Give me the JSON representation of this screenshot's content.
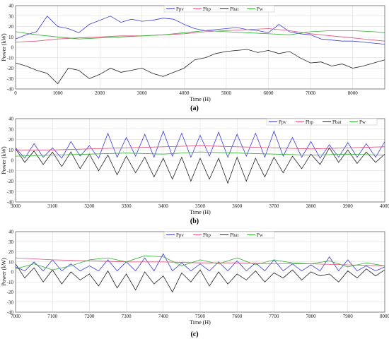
{
  "figure": {
    "panels": [
      {
        "caption": "(a)"
      },
      {
        "caption": "(b)"
      },
      {
        "caption": "(c)"
      }
    ]
  },
  "chart_data": [
    {
      "type": "line",
      "caption": "(a)",
      "xlabel": "Time (H)",
      "ylabel": "Power (kW)",
      "xlim": [
        0,
        8760
      ],
      "ylim": [
        -40,
        40
      ],
      "xticks": [
        0,
        1000,
        2000,
        3000,
        4000,
        5000,
        6000,
        7000,
        8000
      ],
      "yticks": [
        -40,
        -30,
        -20,
        -10,
        0,
        10,
        20,
        30,
        40
      ],
      "grid": true,
      "legend_position": "top-center",
      "series": [
        {
          "name": "Ppv",
          "color": "#3b3bdb",
          "x": [
            0,
            250,
            500,
            750,
            1000,
            1250,
            1500,
            1750,
            2000,
            2250,
            2500,
            2750,
            3000,
            3250,
            3500,
            3750,
            4000,
            4250,
            4500,
            4750,
            5000,
            5250,
            5500,
            5750,
            6000,
            6250,
            6500,
            6750,
            7000,
            7250,
            7500,
            7750,
            8000,
            8250,
            8500,
            8760
          ],
          "y": [
            8,
            12,
            15,
            30,
            20,
            18,
            14,
            22,
            26,
            30,
            24,
            27,
            25,
            26,
            28,
            27,
            22,
            18,
            16,
            17,
            18,
            19,
            17,
            16,
            14,
            22,
            15,
            13,
            12,
            8,
            7,
            6,
            6,
            5,
            4,
            3
          ]
        },
        {
          "name": "Php",
          "color": "#e0527a",
          "x": [
            0,
            500,
            1000,
            1500,
            2000,
            2500,
            3000,
            3500,
            4000,
            4500,
            5000,
            5500,
            6000,
            6500,
            7000,
            7500,
            8000,
            8500,
            8760
          ],
          "y": [
            5,
            6,
            8,
            9,
            10,
            11,
            11,
            12,
            13,
            15,
            16,
            17,
            18,
            16,
            13,
            11,
            9,
            7,
            6
          ]
        },
        {
          "name": "Pbat",
          "color": "#222222",
          "x": [
            0,
            250,
            500,
            750,
            1000,
            1250,
            1500,
            1750,
            2000,
            2250,
            2500,
            2750,
            3000,
            3250,
            3500,
            3750,
            4000,
            4250,
            4500,
            4750,
            5000,
            5250,
            5500,
            5750,
            6000,
            6250,
            6500,
            6750,
            7000,
            7250,
            7500,
            7750,
            8000,
            8250,
            8500,
            8760
          ],
          "y": [
            -15,
            -18,
            -22,
            -25,
            -35,
            -20,
            -22,
            -30,
            -26,
            -20,
            -24,
            -22,
            -20,
            -25,
            -28,
            -24,
            -20,
            -12,
            -10,
            -6,
            -4,
            -3,
            -2,
            -5,
            -3,
            -6,
            -4,
            -10,
            -15,
            -14,
            -18,
            -16,
            -20,
            -18,
            -15,
            -12
          ]
        },
        {
          "name": "Pw",
          "color": "#33b233",
          "x": [
            0,
            500,
            1000,
            1500,
            2000,
            2500,
            3000,
            3500,
            4000,
            4500,
            5000,
            5500,
            6000,
            6500,
            7000,
            7500,
            8000,
            8500,
            8760
          ],
          "y": [
            15,
            12,
            10,
            8,
            9,
            10,
            11,
            12,
            14,
            16,
            15,
            14,
            13,
            12,
            15,
            16,
            16,
            15,
            14
          ]
        }
      ]
    },
    {
      "type": "line",
      "caption": "(b)",
      "xlabel": "Time (H)",
      "ylabel": "Power (kW)",
      "xlim": [
        3000,
        4000
      ],
      "ylim": [
        -40,
        40
      ],
      "xticks": [
        3000,
        3100,
        3200,
        3300,
        3400,
        3500,
        3600,
        3700,
        3800,
        3900,
        4000
      ],
      "yticks": [
        -40,
        -30,
        -20,
        -10,
        0,
        10,
        20,
        30,
        40
      ],
      "grid": true,
      "legend_position": "top-right",
      "series": [
        {
          "name": "Ppv",
          "color": "#3b3bdb",
          "x": [
            3000,
            3025,
            3050,
            3075,
            3100,
            3125,
            3150,
            3175,
            3200,
            3225,
            3250,
            3275,
            3300,
            3325,
            3350,
            3375,
            3400,
            3425,
            3450,
            3475,
            3500,
            3525,
            3550,
            3575,
            3600,
            3625,
            3650,
            3675,
            3700,
            3725,
            3750,
            3775,
            3800,
            3825,
            3850,
            3875,
            3900,
            3925,
            3950,
            3975,
            4000
          ],
          "y": [
            12,
            2,
            16,
            3,
            12,
            2,
            18,
            4,
            14,
            2,
            26,
            3,
            22,
            4,
            25,
            3,
            28,
            4,
            26,
            3,
            24,
            4,
            27,
            3,
            25,
            4,
            26,
            3,
            28,
            4,
            22,
            3,
            18,
            2,
            15,
            3,
            17,
            3,
            16,
            3,
            18
          ]
        },
        {
          "name": "Php",
          "color": "#e0527a",
          "x": [
            3000,
            3100,
            3200,
            3300,
            3400,
            3500,
            3600,
            3700,
            3800,
            3900,
            4000
          ],
          "y": [
            10,
            10,
            11,
            12,
            13,
            14,
            13,
            12,
            11,
            12,
            13
          ]
        },
        {
          "name": "Pbat",
          "color": "#222222",
          "x": [
            3000,
            3025,
            3050,
            3075,
            3100,
            3125,
            3150,
            3175,
            3200,
            3225,
            3250,
            3275,
            3300,
            3325,
            3350,
            3375,
            3400,
            3425,
            3450,
            3475,
            3500,
            3525,
            3550,
            3575,
            3600,
            3625,
            3650,
            3675,
            3700,
            3725,
            3750,
            3775,
            3800,
            3825,
            3850,
            3875,
            3900,
            3925,
            3950,
            3975,
            4000
          ],
          "y": [
            11,
            -2,
            9,
            -4,
            8,
            -6,
            8,
            -8,
            6,
            -10,
            5,
            -14,
            4,
            -12,
            3,
            -16,
            2,
            -18,
            3,
            -20,
            2,
            -18,
            2,
            -22,
            3,
            -20,
            2,
            -16,
            3,
            -12,
            4,
            -8,
            6,
            -4,
            12,
            -2,
            10,
            -3,
            8,
            -2,
            6
          ]
        },
        {
          "name": "Pw",
          "color": "#33b233",
          "x": [
            3000,
            3100,
            3200,
            3300,
            3400,
            3500,
            3600,
            3700,
            3800,
            3900,
            4000
          ],
          "y": [
            4,
            5,
            6,
            7,
            6,
            8,
            7,
            6,
            5,
            6,
            5
          ]
        }
      ]
    },
    {
      "type": "line",
      "caption": "(c)",
      "xlabel": "Time (H)",
      "ylabel": "Power (kW)",
      "xlim": [
        7000,
        8000
      ],
      "ylim": [
        -40,
        40
      ],
      "xticks": [
        7000,
        7100,
        7200,
        7300,
        7400,
        7500,
        7600,
        7700,
        7800,
        7900,
        8000
      ],
      "yticks": [
        -40,
        -30,
        -20,
        -10,
        0,
        10,
        20,
        30,
        40
      ],
      "grid": true,
      "legend_position": "top-center",
      "series": [
        {
          "name": "Ppv",
          "color": "#3b3bdb",
          "x": [
            7000,
            7025,
            7050,
            7075,
            7100,
            7125,
            7150,
            7175,
            7200,
            7225,
            7250,
            7275,
            7300,
            7325,
            7350,
            7375,
            7400,
            7425,
            7450,
            7475,
            7500,
            7525,
            7550,
            7575,
            7600,
            7625,
            7650,
            7675,
            7700,
            7725,
            7750,
            7775,
            7800,
            7825,
            7850,
            7875,
            7900,
            7925,
            7950,
            7975,
            8000
          ],
          "y": [
            5,
            1,
            10,
            1,
            12,
            1,
            8,
            1,
            6,
            1,
            12,
            1,
            10,
            1,
            14,
            1,
            18,
            1,
            9,
            1,
            8,
            1,
            10,
            1,
            11,
            1,
            9,
            1,
            12,
            1,
            8,
            1,
            7,
            1,
            15,
            1,
            12,
            1,
            6,
            1,
            5
          ]
        },
        {
          "name": "Php",
          "color": "#e0527a",
          "x": [
            7000,
            7100,
            7200,
            7300,
            7400,
            7500,
            7600,
            7700,
            7800,
            7900,
            8000
          ],
          "y": [
            14,
            12,
            11,
            10,
            10,
            9,
            9,
            8,
            8,
            7,
            6
          ]
        },
        {
          "name": "Pbat",
          "color": "#222222",
          "x": [
            7000,
            7025,
            7050,
            7075,
            7100,
            7125,
            7150,
            7175,
            7200,
            7225,
            7250,
            7275,
            7300,
            7325,
            7350,
            7375,
            7400,
            7425,
            7450,
            7475,
            7500,
            7525,
            7550,
            7575,
            7600,
            7625,
            7650,
            7675,
            7700,
            7725,
            7750,
            7775,
            7800,
            7825,
            7850,
            7875,
            7900,
            7925,
            7950,
            7975,
            8000
          ],
          "y": [
            8,
            -6,
            4,
            -10,
            2,
            -12,
            0,
            -8,
            -2,
            -14,
            1,
            -16,
            -2,
            -18,
            0,
            -12,
            -4,
            -20,
            -1,
            -10,
            2,
            -14,
            0,
            -12,
            -2,
            -8,
            1,
            -10,
            -1,
            -6,
            2,
            -8,
            0,
            -4,
            -2,
            -10,
            1,
            -6,
            3,
            -4,
            2
          ]
        },
        {
          "name": "Pw",
          "color": "#33b233",
          "x": [
            7000,
            7050,
            7100,
            7150,
            7200,
            7250,
            7300,
            7350,
            7400,
            7450,
            7500,
            7550,
            7600,
            7650,
            7700,
            7750,
            7800,
            7850,
            7900,
            7950,
            8000
          ],
          "y": [
            3,
            8,
            2,
            6,
            12,
            14,
            10,
            16,
            15,
            6,
            12,
            8,
            14,
            7,
            12,
            9,
            8,
            11,
            5,
            9,
            6
          ]
        }
      ]
    }
  ]
}
